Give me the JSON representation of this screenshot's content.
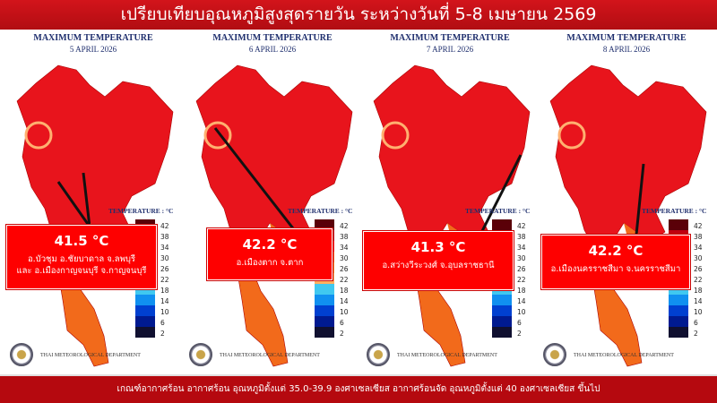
{
  "header": {
    "title": "เปรียบเทียบอุณหภูมิสูงสุดรายวัน ระหว่างวันที่ 5-8 เมษายน 2569"
  },
  "footer": {
    "text": "เกณฑ์อากาศร้อน อากาศร้อน อุณหภูมิตั้งแต่ 35.0-39.9 องศาเซลเซียส อากาศร้อนจัด อุณหภูมิตั้งแต่ 40 องศาเซลเซียส ขึ้นไป"
  },
  "legend": {
    "title": "TEMPERATURE : °C",
    "labels": [
      "42",
      "38",
      "34",
      "30",
      "26",
      "22",
      "18",
      "14",
      "10",
      "6",
      "2"
    ],
    "colors": [
      "#5a0008",
      "#c00010",
      "#ff1010",
      "#ff5a10",
      "#ff8a30",
      "#ffb060",
      "#40c8f0",
      "#1090f0",
      "#0040d0",
      "#001a90",
      "#101030"
    ]
  },
  "colors": {
    "map_red": "#e8141c",
    "map_orange": "#f26a1b",
    "callout": "#fe0000"
  },
  "department": "THAI METEOROLOGICAL DEPARTMENT",
  "panels": [
    {
      "title": "MAXIMUM TEMPERATURE",
      "date": "5 APRIL  2026",
      "temp": "41.5 °C",
      "line1": "อ.บัวชุม อ.ชัยบาดาล จ.ลพบุรี",
      "line2": "และ อ.เมืองกาญจนบุรี จ.กาญจนบุรี"
    },
    {
      "title": "MAXIMUM TEMPERATURE",
      "date": "6 APRIL  2026",
      "temp": "42.2 °C",
      "line1": "อ.เมืองตาก จ.ตาก",
      "line2": ""
    },
    {
      "title": "MAXIMUM TEMPERATURE",
      "date": "7 APRIL  2026",
      "temp": "41.3 °C",
      "line1": "อ.สว่างวีระวงศ์ จ.อุบลราชธานี",
      "line2": ""
    },
    {
      "title": "MAXIMUM TEMPERATURE",
      "date": "8 APRIL  2026",
      "temp": "42.2 °C",
      "line1": "อ.เมืองนครราชสีมา จ.นครราชสีมา",
      "line2": ""
    }
  ]
}
